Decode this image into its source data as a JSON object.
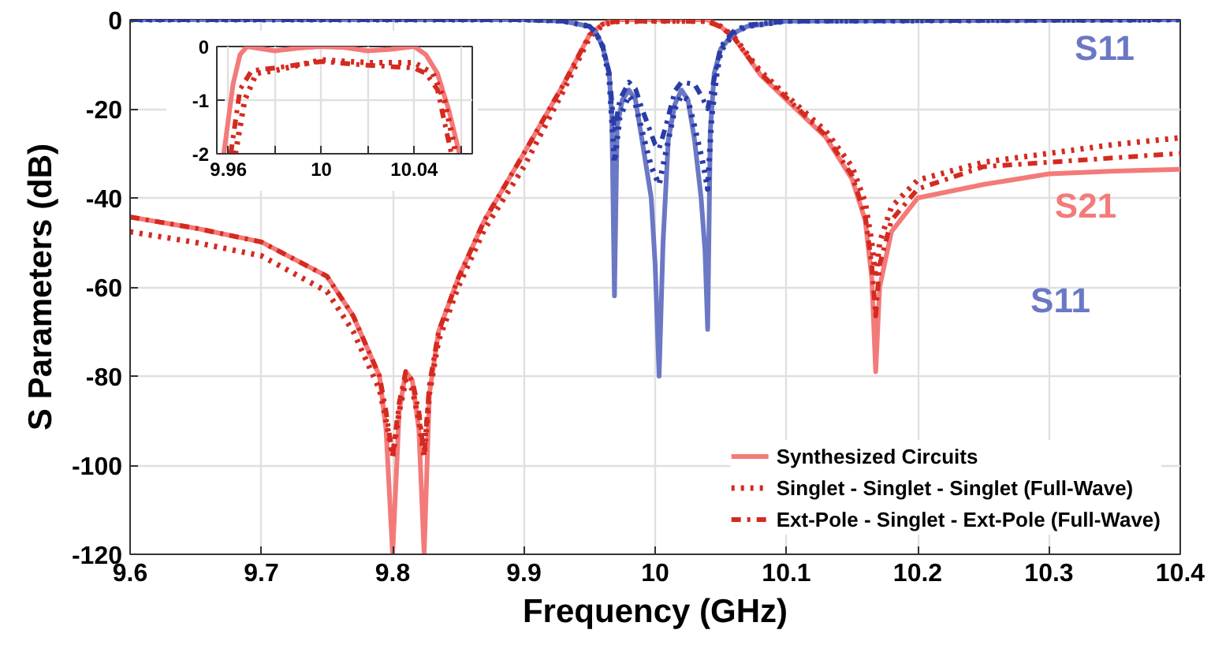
{
  "chart_data": [
    {
      "type": "line",
      "xlabel": "Frequency (GHz)",
      "ylabel": "S Parameters (dB)",
      "xlim": [
        9.6,
        10.4
      ],
      "ylim": [
        -120,
        0
      ],
      "xticks": [
        9.6,
        9.7,
        9.8,
        9.9,
        10,
        10.1,
        10.2,
        10.3,
        10.4
      ],
      "yticks": [
        -120,
        -100,
        -80,
        -60,
        -40,
        -20,
        0
      ],
      "grid": true,
      "legend": "bottom right",
      "annotations": [
        "S11",
        "S21",
        "S11"
      ],
      "series": [
        {
          "name": "Synthesized Circuits",
          "color": "#f47a7a",
          "line_style": "solid",
          "x": [
            9.6,
            9.65,
            9.7,
            9.75,
            9.77,
            9.79,
            9.795,
            9.8,
            9.805,
            9.81,
            9.815,
            9.82,
            9.824,
            9.828,
            9.835,
            9.85,
            9.87,
            9.9,
            9.93,
            9.95,
            9.96,
            9.97,
            10.0,
            10.04,
            10.05,
            10.06,
            10.08,
            10.1,
            10.13,
            10.15,
            10.16,
            10.165,
            10.168,
            10.171,
            10.18,
            10.2,
            10.25,
            10.3,
            10.35,
            10.4
          ],
          "values": [
            -44.3,
            -46.8,
            -49.9,
            -57.6,
            -66.5,
            -80,
            -92,
            -120,
            -88,
            -79,
            -81,
            -92,
            -120,
            -84,
            -70,
            -58,
            -45,
            -30,
            -14.6,
            -3.4,
            -1,
            0,
            0,
            0,
            -1.6,
            -4,
            -12.3,
            -18,
            -26.4,
            -35.8,
            -45,
            -58,
            -79,
            -60,
            -47.6,
            -40,
            -37,
            -34.6,
            -34,
            -33.6
          ]
        },
        {
          "name": "Singlet - Singlet - Singlet (Full-Wave)",
          "color": "#d42a20",
          "line_style": "dotted",
          "x": [
            9.6,
            9.65,
            9.7,
            9.75,
            9.77,
            9.79,
            9.795,
            9.8,
            9.805,
            9.81,
            9.815,
            9.82,
            9.824,
            9.828,
            9.835,
            9.85,
            9.87,
            9.9,
            9.93,
            9.95,
            9.96,
            9.97,
            10.0,
            10.04,
            10.05,
            10.06,
            10.08,
            10.1,
            10.13,
            10.15,
            10.16,
            10.165,
            10.168,
            10.171,
            10.18,
            10.2,
            10.25,
            10.3,
            10.35,
            10.4
          ],
          "values": [
            -47.6,
            -50,
            -53,
            -61,
            -70,
            -83,
            -90,
            -98,
            -88,
            -81,
            -83,
            -90,
            -98,
            -84,
            -72,
            -60,
            -47,
            -33,
            -16,
            -4,
            -1.2,
            -0.4,
            -0.3,
            -0.3,
            -1.5,
            -3.8,
            -11.5,
            -17,
            -25,
            -33,
            -41,
            -50,
            -58,
            -50,
            -42,
            -36,
            -32,
            -30,
            -28,
            -26.5
          ]
        },
        {
          "name": "Ext-Pole - Singlet - Ext-Pole (Full-Wave)",
          "color": "#d42a20",
          "line_style": "dashdot",
          "x": [
            9.6,
            9.65,
            9.7,
            9.75,
            9.77,
            9.79,
            9.795,
            9.8,
            9.805,
            9.81,
            9.815,
            9.82,
            9.824,
            9.828,
            9.835,
            9.85,
            9.87,
            9.9,
            9.93,
            9.95,
            9.96,
            9.97,
            10.0,
            10.04,
            10.05,
            10.06,
            10.08,
            10.1,
            10.13,
            10.15,
            10.16,
            10.165,
            10.168,
            10.171,
            10.18,
            10.2,
            10.25,
            10.3,
            10.35,
            10.4
          ],
          "values": [
            -44.3,
            -46.8,
            -49.9,
            -57.6,
            -66.5,
            -80,
            -88,
            -98,
            -86,
            -79,
            -81,
            -88,
            -98,
            -82,
            -70,
            -58,
            -45,
            -30,
            -14.6,
            -3.4,
            -1,
            -0.4,
            -0.3,
            -0.4,
            -1.6,
            -4,
            -12,
            -17.5,
            -26,
            -35,
            -44,
            -55,
            -66.5,
            -55,
            -45,
            -38,
            -33,
            -32,
            -31,
            -30
          ]
        },
        {
          "color": "#6b78c4",
          "line_style": "solid",
          "x": [
            9.6,
            9.9,
            9.93,
            9.95,
            9.955,
            9.96,
            9.965,
            9.967,
            9.969,
            9.971,
            9.975,
            9.98,
            9.985,
            9.99,
            9.997,
            10.0,
            10.003,
            10.006,
            10.01,
            10.015,
            10.02,
            10.025,
            10.03,
            10.035,
            10.038,
            10.04,
            10.042,
            10.045,
            10.05,
            10.06,
            10.07,
            10.1,
            10.4
          ],
          "values": [
            0,
            0,
            -0.3,
            -1.5,
            -3,
            -6,
            -12,
            -22,
            -62,
            -24,
            -18,
            -15.8,
            -18,
            -27,
            -40,
            -55,
            -80,
            -50,
            -27,
            -19,
            -15.8,
            -18,
            -27,
            -40,
            -52,
            -69.5,
            -25,
            -12,
            -6.5,
            -3,
            -1.5,
            -0.3,
            0
          ]
        },
        {
          "color": "#2a3ca8",
          "line_style": "dotted",
          "x": [
            9.6,
            9.9,
            9.93,
            9.95,
            9.955,
            9.96,
            9.965,
            9.969,
            9.973,
            9.98,
            9.985,
            9.99,
            9.997,
            10.003,
            10.008,
            10.015,
            10.02,
            10.025,
            10.03,
            10.037,
            10.04,
            10.043,
            10.047,
            10.05,
            10.06,
            10.07,
            10.1,
            10.4
          ],
          "values": [
            0,
            0,
            -0.3,
            -1.5,
            -3,
            -6,
            -13,
            -32,
            -22,
            -17,
            -19,
            -25,
            -33,
            -37,
            -30,
            -20,
            -17,
            -18,
            -24,
            -33,
            -38,
            -22,
            -12,
            -7,
            -3,
            -1.5,
            -0.3,
            0
          ]
        },
        {
          "color": "#2a3ca8",
          "line_style": "dashdot",
          "x": [
            9.6,
            9.9,
            9.93,
            9.95,
            9.955,
            9.96,
            9.965,
            9.969,
            9.973,
            9.98,
            9.985,
            9.99,
            10.0,
            10.003,
            10.008,
            10.015,
            10.02,
            10.03,
            10.035,
            10.04,
            10.043,
            10.05,
            10.06,
            10.07,
            10.1,
            10.4
          ],
          "values": [
            0,
            0,
            -0.3,
            -1.5,
            -3,
            -6,
            -12,
            -25,
            -18,
            -14,
            -15.5,
            -20,
            -28,
            -29,
            -24,
            -16,
            -14,
            -14.5,
            -17,
            -20,
            -16,
            -6,
            -2.5,
            -1.2,
            -0.3,
            0
          ]
        }
      ]
    },
    {
      "type": "line",
      "xlim": [
        9.955,
        10.065
      ],
      "ylim": [
        -2,
        0
      ],
      "xticks": [
        9.96,
        {
          "value": 9.98,
          "label": null
        },
        10,
        {
          "value": 10.02,
          "label": null
        },
        10.04,
        {
          "value": 10.06,
          "label": null
        }
      ],
      "yticks": [
        -2,
        -1,
        0
      ],
      "grid": true,
      "series": [
        {
          "color": "#f47a7a",
          "line_style": "solid",
          "x": [
            9.958,
            9.962,
            9.965,
            9.968,
            9.98,
            9.99,
            10.0,
            10.01,
            10.02,
            10.03,
            10.04,
            10.045,
            10.05,
            10.055,
            10.0595
          ],
          "values": [
            -2,
            -0.7,
            -0.15,
            0,
            -0.08,
            -0.03,
            0,
            -0.02,
            -0.08,
            -0.05,
            0,
            -0.15,
            -0.5,
            -1.2,
            -2
          ]
        },
        {
          "color": "#d42a20",
          "line_style": "dotted",
          "x": [
            9.963,
            9.967,
            9.972,
            9.98,
            10.0,
            10.02,
            10.04,
            10.048,
            10.053,
            10.058
          ],
          "values": [
            -2,
            -1,
            -0.5,
            -0.45,
            -0.25,
            -0.3,
            -0.3,
            -0.5,
            -1,
            -2
          ]
        },
        {
          "color": "#d42a20",
          "line_style": "dashdot",
          "x": [
            9.961,
            9.965,
            9.97,
            9.98,
            10.0,
            10.02,
            10.04,
            10.045,
            10.05,
            10.056
          ],
          "values": [
            -2,
            -0.8,
            -0.45,
            -0.4,
            -0.28,
            -0.35,
            -0.4,
            -0.5,
            -0.8,
            -2
          ]
        }
      ]
    }
  ]
}
